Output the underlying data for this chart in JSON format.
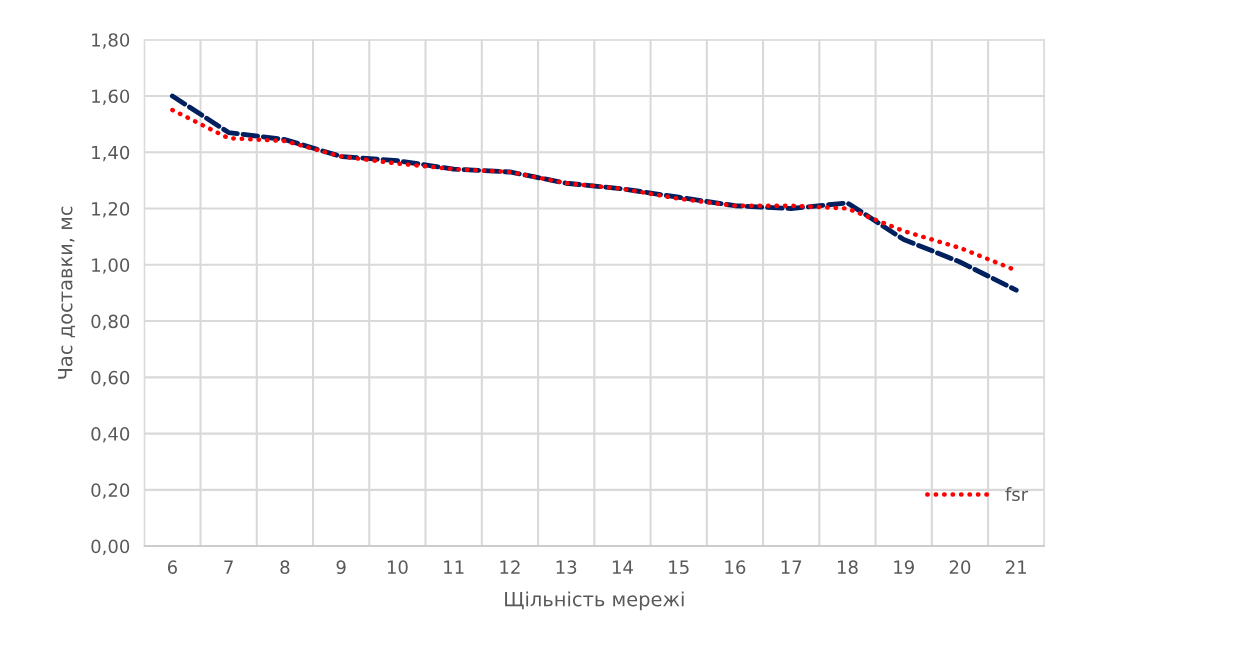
{
  "chart_data": {
    "type": "line",
    "xlabel": "Щільність мережі",
    "ylabel": "Час доставки, мс",
    "categories": [
      "6",
      "7",
      "8",
      "9",
      "10",
      "11",
      "12",
      "13",
      "14",
      "15",
      "16",
      "17",
      "18",
      "19",
      "20",
      "21"
    ],
    "series": [
      {
        "color": "#002060",
        "line_style": "dashed",
        "values": [
          1.6,
          1.47,
          1.445,
          1.385,
          1.37,
          1.34,
          1.33,
          1.29,
          1.27,
          1.24,
          1.21,
          1.2,
          1.22,
          1.09,
          1.01,
          0.91
        ]
      },
      {
        "name": "fsr",
        "color": "#ff0000",
        "line_style": "dotted",
        "values": [
          1.55,
          1.45,
          1.44,
          1.385,
          1.36,
          1.34,
          1.33,
          1.29,
          1.27,
          1.235,
          1.21,
          1.21,
          1.2,
          1.12,
          1.06,
          0.98
        ]
      }
    ],
    "ylim": [
      0,
      1.8
    ],
    "yticks": [
      {
        "value": 0,
        "label": "0,00"
      },
      {
        "value": 0.2,
        "label": "0,20"
      },
      {
        "value": 0.4,
        "label": "0,40"
      },
      {
        "value": 0.6,
        "label": "0,60"
      },
      {
        "value": 0.8,
        "label": "0,80"
      },
      {
        "value": 1.0,
        "label": "1,00"
      },
      {
        "value": 1.2,
        "label": "1,20"
      },
      {
        "value": 1.4,
        "label": "1,40"
      },
      {
        "value": 1.6,
        "label": "1,60"
      },
      {
        "value": 1.8,
        "label": "1,80"
      }
    ],
    "grid": true,
    "legend": "bottom right",
    "marker": "none"
  }
}
